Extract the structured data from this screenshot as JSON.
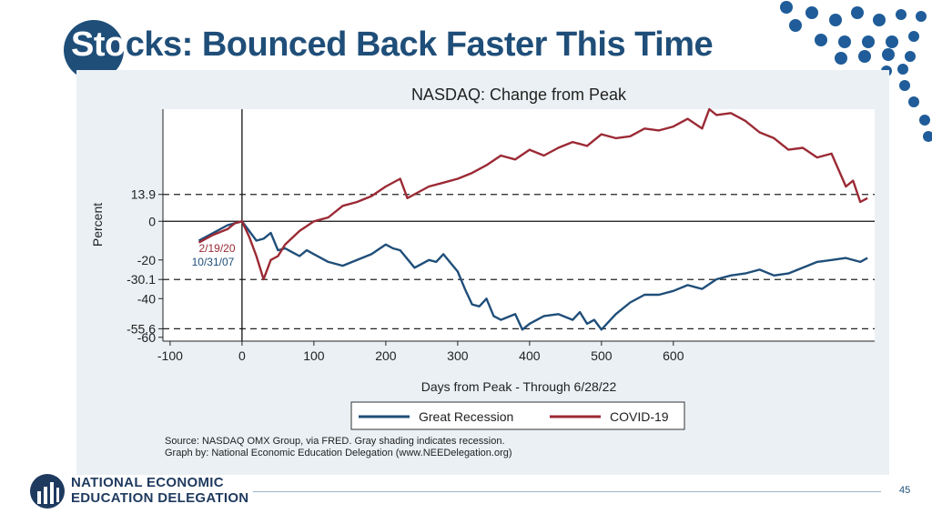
{
  "slide": {
    "title_part1": "Sto",
    "title_part2": "cks: Bounced Back Faster This Time",
    "page_number": "45"
  },
  "logo": {
    "line1": "NATIONAL ECONOMIC",
    "line2": "EDUCATION DELEGATION"
  },
  "colors": {
    "brand": "#1f4e79",
    "great_recession": "#1f4e79",
    "covid": "#9b2a35",
    "chart_bg": "#eaf0f4"
  },
  "chart_data": {
    "type": "line",
    "title": "NASDAQ: Change from Peak",
    "xlabel": "Days from Peak - Through 6/28/22",
    "ylabel": "Percent",
    "xlim": [
      -110,
      880
    ],
    "ylim": [
      -62,
      58
    ],
    "xticks": [
      -100,
      0,
      100,
      200,
      300,
      400,
      500,
      600
    ],
    "yticks": [
      {
        "value": 13.9,
        "label": "13.9"
      },
      {
        "value": 0,
        "label": "0"
      },
      {
        "value": -20,
        "label": "-20"
      },
      {
        "value": -30.1,
        "label": "-30.1"
      },
      {
        "value": -40,
        "label": "-40"
      },
      {
        "value": -55.6,
        "label": "-55.6"
      },
      {
        "value": -60,
        "label": "-60"
      }
    ],
    "reference_lines": [
      13.9,
      -30.1,
      -55.6
    ],
    "zero_line": 0,
    "vertical_line": 0,
    "annotations": [
      {
        "text": "2/19/20",
        "x": -60,
        "y": -14,
        "series": "COVID-19"
      },
      {
        "text": "10/31/07",
        "x": -70,
        "y": -21,
        "series": "Great Recession"
      }
    ],
    "series": [
      {
        "name": "Great Recession",
        "x": [
          -60,
          -40,
          -20,
          -10,
          0,
          10,
          20,
          30,
          40,
          50,
          60,
          70,
          80,
          90,
          100,
          120,
          140,
          160,
          180,
          200,
          210,
          220,
          240,
          260,
          270,
          280,
          300,
          310,
          320,
          330,
          340,
          350,
          360,
          380,
          390,
          400,
          420,
          440,
          460,
          470,
          480,
          490,
          500,
          520,
          540,
          560,
          580,
          600,
          620,
          640,
          660,
          680,
          700,
          720,
          740,
          760,
          780,
          800,
          820,
          840,
          860,
          870
        ],
        "values": [
          -10,
          -6,
          -2,
          -1,
          0,
          -5,
          -10,
          -9,
          -6,
          -15,
          -14,
          -16,
          -18,
          -15,
          -17,
          -21,
          -23,
          -20,
          -17,
          -12,
          -14,
          -15,
          -24,
          -20,
          -21,
          -17,
          -26,
          -35,
          -43,
          -44,
          -40,
          -49,
          -51,
          -48,
          -56,
          -53,
          -49,
          -48,
          -51,
          -47,
          -53,
          -51,
          -56,
          -48,
          -42,
          -38,
          -38,
          -36,
          -33,
          -35,
          -30,
          -28,
          -27,
          -25,
          -28,
          -27,
          -24,
          -21,
          -20,
          -19,
          -21,
          -19
        ]
      },
      {
        "name": "COVID-19",
        "x": [
          -60,
          -40,
          -20,
          -10,
          0,
          10,
          20,
          30,
          40,
          50,
          60,
          80,
          100,
          120,
          140,
          160,
          180,
          200,
          220,
          230,
          240,
          260,
          280,
          300,
          320,
          340,
          360,
          380,
          400,
          420,
          440,
          460,
          480,
          500,
          520,
          540,
          560,
          580,
          600,
          620,
          640,
          650,
          660,
          680,
          700,
          720,
          740,
          760,
          780,
          800,
          820,
          840,
          850,
          860,
          870
        ],
        "values": [
          -11,
          -7,
          -4,
          -1,
          0,
          -8,
          -18,
          -30,
          -20,
          -18,
          -12,
          -5,
          0,
          2,
          8,
          10,
          13,
          18,
          22,
          12,
          14,
          18,
          20,
          22,
          25,
          29,
          34,
          32,
          37,
          34,
          38,
          41,
          39,
          45,
          43,
          44,
          48,
          47,
          49,
          53,
          48,
          58,
          55,
          56,
          52,
          46,
          43,
          37,
          38,
          33,
          35,
          18,
          21,
          10,
          12
        ]
      }
    ]
  },
  "legend": {
    "great_recession": "Great Recession",
    "covid": "COVID-19"
  },
  "source": {
    "line1": "Source: NASDAQ OMX Group, via FRED. Gray shading indicates recession.",
    "line2": "Graph by: National Economic Education Delegation (www.NEEDelegation.org)"
  }
}
